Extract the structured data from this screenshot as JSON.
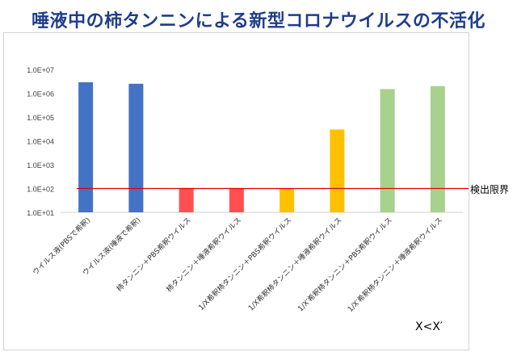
{
  "title": "唾液中の柿タンニンによる新型コロナウイルスの不活化",
  "detection_limit_label": "検出限界",
  "note": "X<X′",
  "colors": {
    "blue": "#4472c4",
    "red": "#ff5050",
    "yellow": "#ffc000",
    "green": "#a9d18e",
    "limit_line": "#e00000",
    "title": "#1f3d8a"
  },
  "chart_data": {
    "type": "bar",
    "y_scale": "log",
    "ylim": [
      10,
      10000000
    ],
    "yticks": [
      {
        "value": 10,
        "label": "1.0E+01"
      },
      {
        "value": 100,
        "label": "1.0E+02"
      },
      {
        "value": 1000,
        "label": "1.0E+03"
      },
      {
        "value": 10000,
        "label": "1.0E+04"
      },
      {
        "value": 100000,
        "label": "1.0E+05"
      },
      {
        "value": 1000000,
        "label": "1.0E+06"
      },
      {
        "value": 10000000,
        "label": "1.0E+07"
      }
    ],
    "categories": [
      "ウイルス液(PBSで希釈)",
      "ウイルス液(唾液で希釈)",
      "柿タンニン＋PBS希釈ウイルス",
      "柿タンニン＋唾液希釈ウイルス",
      "1/X希釈柿タンニン＋PBS希釈ウイルス",
      "1/X希釈柿タンニン＋唾液希釈ウイルス",
      "1/X′希釈柿タンニン＋PBS希釈ウイルス",
      "1/X′希釈柿タンニン＋唾液希釈ウイルス"
    ],
    "values": [
      2900000,
      2500000,
      100,
      100,
      100,
      30000,
      1500000,
      2000000
    ],
    "bar_colors": [
      "blue",
      "blue",
      "red",
      "red",
      "yellow",
      "yellow",
      "green",
      "green"
    ],
    "detection_limit": 100,
    "grid": false,
    "legend": "none"
  }
}
